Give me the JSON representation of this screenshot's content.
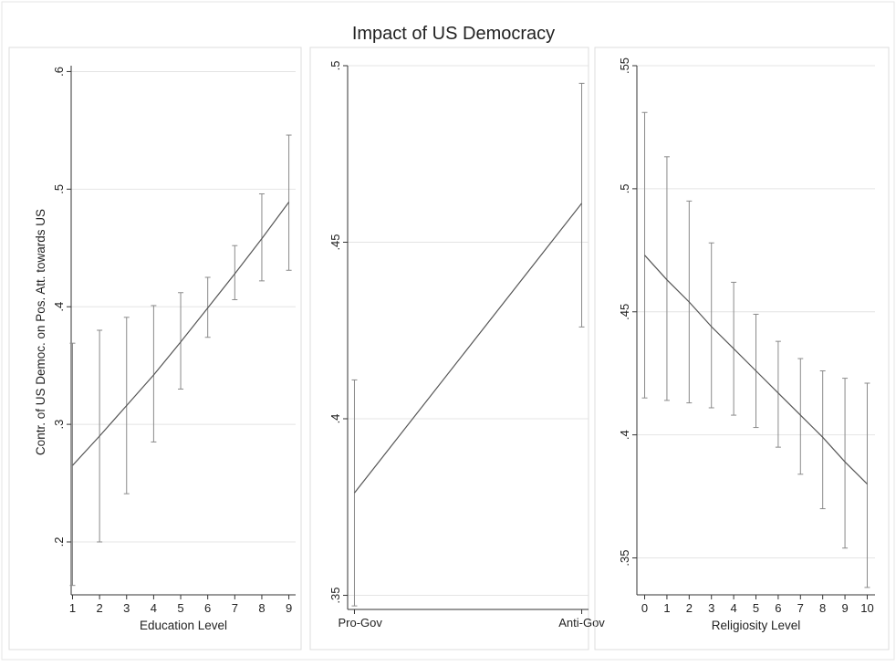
{
  "figure": {
    "title": "Impact of US Democracy",
    "y_axis_label": "Contr. of US Democ. on Pos. Att. towards US"
  },
  "chart_data": [
    {
      "type": "line",
      "title": "",
      "xlabel": "Education Level",
      "ylabel": "Contr. of US Democ. on Pos. Att. towards US",
      "x": [
        1,
        2,
        3,
        4,
        5,
        6,
        7,
        8,
        9
      ],
      "x_tick_labels": [
        "1",
        "2",
        "3",
        "4",
        "5",
        "6",
        "7",
        "8",
        "9"
      ],
      "xlim": [
        0.95,
        9.25
      ],
      "ylim": [
        0.155,
        0.605
      ],
      "y_ticks": [
        0.2,
        0.3,
        0.4,
        0.5,
        0.6
      ],
      "y_tick_labels": [
        ".2",
        ".3",
        ".4",
        ".5",
        ".6"
      ],
      "grid": true,
      "series": [
        {
          "values": [
            0.265,
            0.29,
            0.316,
            0.342,
            0.37,
            0.399,
            0.428,
            0.458,
            0.489
          ],
          "lower": [
            0.163,
            0.2,
            0.241,
            0.285,
            0.33,
            0.374,
            0.406,
            0.422,
            0.431
          ],
          "upper": [
            0.369,
            0.38,
            0.391,
            0.401,
            0.412,
            0.425,
            0.452,
            0.496,
            0.546
          ]
        }
      ]
    },
    {
      "type": "line",
      "title": "",
      "xlabel": "",
      "ylabel": "",
      "x": [
        0,
        1
      ],
      "x_tick_labels": [
        "Pro-Gov",
        "Anti-Gov"
      ],
      "xlim": [
        -0.03,
        1.03
      ],
      "ylim": [
        0.346,
        0.5
      ],
      "y_ticks": [
        0.35,
        0.4,
        0.45,
        0.5
      ],
      "y_tick_labels": [
        ".35",
        ".4",
        ".45",
        ".5"
      ],
      "grid": true,
      "series": [
        {
          "values": [
            0.379,
            0.461
          ],
          "lower": [
            0.347,
            0.426
          ],
          "upper": [
            0.411,
            0.495
          ]
        }
      ]
    },
    {
      "type": "line",
      "title": "",
      "xlabel": "Religiosity Level",
      "ylabel": "",
      "x": [
        0,
        1,
        2,
        3,
        4,
        5,
        6,
        7,
        8,
        9,
        10
      ],
      "x_tick_labels": [
        "0",
        "1",
        "2",
        "3",
        "4",
        "5",
        "6",
        "7",
        "8",
        "9",
        "10"
      ],
      "xlim": [
        -0.35,
        10.35
      ],
      "ylim": [
        0.335,
        0.55
      ],
      "y_ticks": [
        0.35,
        0.4,
        0.45,
        0.5,
        0.55
      ],
      "y_tick_labels": [
        ".35",
        ".4",
        ".45",
        ".5",
        ".55"
      ],
      "grid": true,
      "series": [
        {
          "values": [
            0.473,
            0.463,
            0.454,
            0.444,
            0.435,
            0.426,
            0.417,
            0.408,
            0.399,
            0.389,
            0.38
          ],
          "lower": [
            0.415,
            0.414,
            0.413,
            0.411,
            0.408,
            0.403,
            0.395,
            0.384,
            0.37,
            0.354,
            0.338
          ],
          "upper": [
            0.531,
            0.513,
            0.495,
            0.478,
            0.462,
            0.449,
            0.438,
            0.431,
            0.426,
            0.423,
            0.421
          ]
        }
      ]
    }
  ],
  "colors": {
    "background": "#ffffff",
    "panel_border": "#dddddd",
    "grid": "#e4e4e4",
    "axis": "#333333",
    "series": "#555555",
    "error_bar": "#8a8a8a",
    "text": "#222222"
  }
}
